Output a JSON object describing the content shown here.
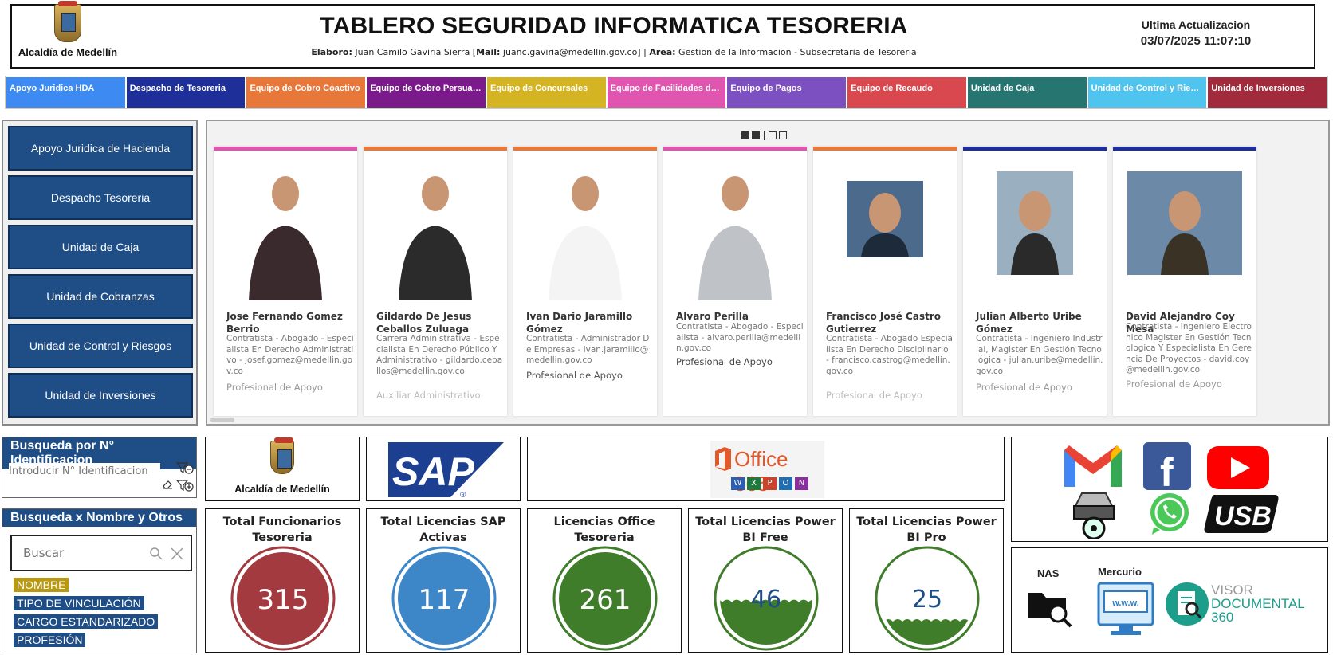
{
  "header": {
    "logo_label": "Alcaldía de Medellín",
    "title": "TABLERO SEGURIDAD INFORMATICA TESORERIA",
    "credits": {
      "elaboro_label": "Elaboro:",
      "elaboro_value": "Juan Camilo Gaviria Sierra [",
      "mail_label": "Mail:",
      "mail_value": "juanc.gaviria@medellin.gov.co] |",
      "area_label": "Area:",
      "area_value": "Gestion de la Informacion - Subsecretaria de Tesoreria"
    },
    "update_label": "Ultima Actualizacion",
    "update_value": "03/07/2025 11:07:10"
  },
  "tabs": [
    {
      "label": "Apoyo Juridica HDA",
      "color": "#3d8bf2"
    },
    {
      "label": "Despacho de Tesoreria",
      "color": "#1f2f9a"
    },
    {
      "label": "Equipo de Cobro Coactivo",
      "color": "#e8773a"
    },
    {
      "label": "Equipo de Cobro Persuasivo",
      "color": "#7b1a8a"
    },
    {
      "label": "Equipo de Concursales",
      "color": "#d4b422"
    },
    {
      "label": "Equipo de Facilidades de ...",
      "color": "#e055b0"
    },
    {
      "label": "Equipo de Pagos",
      "color": "#7d50c2"
    },
    {
      "label": "Equipo de Recaudo",
      "color": "#d9484f"
    },
    {
      "label": "Unidad de Caja",
      "color": "#267571"
    },
    {
      "label": "Unidad de Control y Riesg...",
      "color": "#4fc4ee"
    },
    {
      "label": "Unidad de Inversiones",
      "color": "#a12a3d"
    }
  ],
  "nav": [
    "Apoyo Juridica de Hacienda",
    "Despacho Tesoreria",
    "Unidad de Caja",
    "Unidad de Cobranzas",
    "Unidad de Control y Riesgos",
    "Unidad de Inversiones"
  ],
  "cards": [
    {
      "name": "Jose Fernando Gomez Berrio",
      "desc": "Contratista - Abogado - Especialista En Derecho Administrativo - josef.gomez@medellin.gov.co",
      "role": "Profesional de Apoyo",
      "bar": "#e055b0"
    },
    {
      "name": "Gildardo De Jesus Ceballos Zuluaga",
      "desc": "Carrera Administrativa - Especialista En Derecho Público Y Administrativo - gildardo.ceballos@medellin.gov.co",
      "role": "Auxiliar Administrativo",
      "bar": "#e8773a"
    },
    {
      "name": "Ivan Dario Jaramillo Gómez",
      "desc": "Contratista - Administrador De Empresas - ivan.jaramillo@medellin.gov.co",
      "role": "Profesional de Apoyo",
      "bar": "#e8773a"
    },
    {
      "name": "Alvaro Perilla",
      "desc": "Contratista - Abogado - Especialista - alvaro.perilla@medellin.gov.co",
      "role": "Profesional de Apoyo",
      "bar": "#e055b0"
    },
    {
      "name": "Francisco José Castro Gutierrez",
      "desc": "Contratista - Abogado Especialista En Derecho Disciplinario - francisco.castrog@medellin.gov.co",
      "role": "Profesional de Apoyo",
      "bar": "#e8773a"
    },
    {
      "name": "Julian Alberto Uribe Gómez",
      "desc": "Contratista - Ingeniero Industrial, Magister En Gestión Tecnológica - julian.uribe@medellin.gov.co",
      "role": "Profesional de Apoyo",
      "bar": "#1f2f9a"
    },
    {
      "name": "David Alejandro Coy Mesa",
      "desc": "Contratista - Ingeniero Electronico Magister En Gestión Tecnologica Y Especialista En Gerencia De Proyectos - david.coy@medellin.gov.co",
      "role": "Profesional de Apoyo",
      "bar": "#1f2f9a"
    }
  ],
  "search_id": {
    "title": "Busqueda por N° Identificacion",
    "placeholder": "Introducir N° Identificacion"
  },
  "search_name": {
    "title": "Busqueda x Nombre y Otros",
    "placeholder": "Buscar",
    "chips": [
      {
        "label": "NOMBRE",
        "color": "#b8990f"
      },
      {
        "label": "TIPO DE VINCULACIÓN",
        "color": "#1f4e87"
      },
      {
        "label": "CARGO ESTANDARIZADO",
        "color": "#1f4e87"
      },
      {
        "label": "PROFESIÓN",
        "color": "#1f4e87"
      }
    ]
  },
  "logos": {
    "alcaldia": "Alcaldía de Medellín",
    "sap": "SAP",
    "office": "Office 365",
    "office_apps": [
      "W",
      "X",
      "P",
      "O",
      "N"
    ]
  },
  "kpis": [
    {
      "title": "Total Funcionarios Tesoreria",
      "value": "315",
      "style": "solid",
      "color": "#a33a40"
    },
    {
      "title": "Total Licencias SAP Activas",
      "value": "117",
      "style": "solid",
      "color": "#3d86c8"
    },
    {
      "title": "Licencias Office Tesoreria",
      "value": "261",
      "style": "solid",
      "color": "#3f7d2a"
    },
    {
      "title": "Total Licencias Power BI Free",
      "value": "46",
      "style": "wave",
      "fill_level": 0.46,
      "color": "#3f7d2a"
    },
    {
      "title": "Total Licencias Power BI Pro",
      "value": "25",
      "style": "wave",
      "fill_level": 0.25,
      "color": "#3f7d2a"
    }
  ],
  "social_icons": [
    "gmail-icon",
    "facebook-icon",
    "youtube-icon",
    "disk-drive-icon",
    "whatsapp-icon",
    "usb-icon"
  ],
  "facebook_letter": "f",
  "usb_label": "USB",
  "tools": {
    "nas_label": "NAS",
    "mercurio_label": "Mercurio",
    "mercurio_screen": "w.w.w.",
    "visor_line1": "VISOR",
    "visor_line2": "DOCUMENTAL",
    "visor_line3": "360"
  }
}
